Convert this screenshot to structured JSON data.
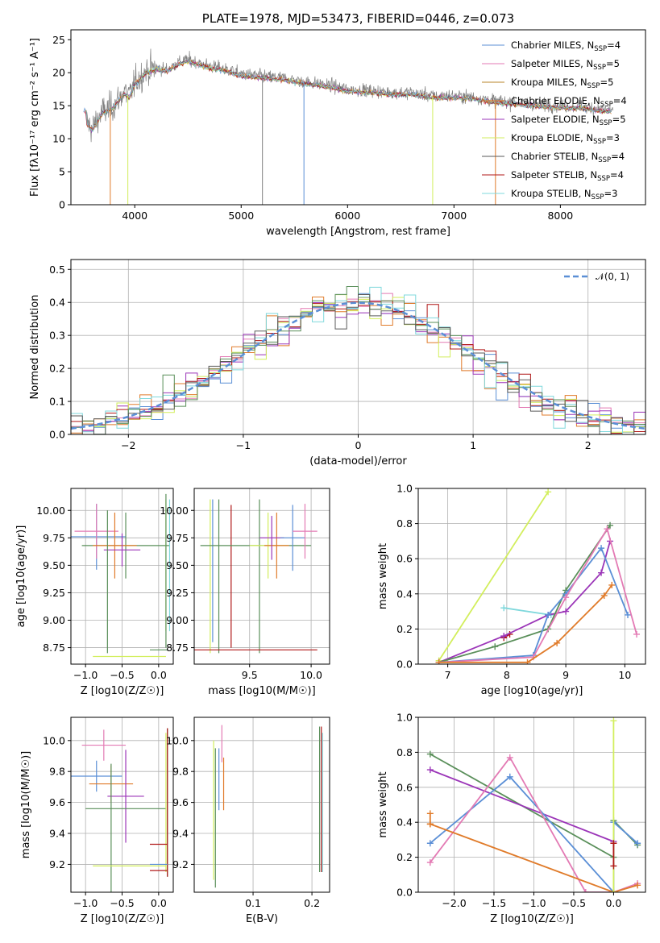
{
  "colors": {
    "Chabrier MILES": "#5b8fd6",
    "Salpeter MILES": "#e37ab4",
    "Kroupa MILES": "#b8852a",
    "Chabrier ELODIE": "#e07b2a",
    "Salpeter ELODIE": "#9b35b8",
    "Kroupa ELODIE": "#d2ee5c",
    "Chabrier STELIB": "#5a5a5a",
    "Salpeter STELIB": "#b01818",
    "Kroupa STELIB": "#7fd8dc",
    "green": "#5a8f5a",
    "norm": "#5b8fd6"
  },
  "chart_data": [
    {
      "id": "spectrum",
      "type": "line",
      "title": "PLATE=1978, MJD=53473, FIBERID=0446, z=0.073",
      "xlabel": "wavelength [Angstrom, rest frame]",
      "ylabel": "Flux [fλ10⁻¹⁷ erg cm⁻² s⁻¹ A⁻¹]",
      "xlim": [
        3400,
        8800
      ],
      "ylim": [
        0,
        26.5
      ],
      "xticks": [
        4000,
        5000,
        6000,
        7000,
        8000
      ],
      "yticks": [
        0,
        5,
        10,
        15,
        20,
        25
      ],
      "legend_position": "top-right",
      "data_envelope": {
        "x": [
          3550,
          3600,
          3650,
          3700,
          3750,
          3800,
          3850,
          3900,
          3950,
          4000,
          4050,
          4100,
          4200,
          4300,
          4400,
          4500,
          4600,
          4700,
          4800,
          4900,
          5000,
          5200,
          5400,
          5600,
          5800,
          6000,
          6200,
          6400,
          6600,
          6800,
          7000,
          7200,
          7400,
          7600,
          7800,
          8000,
          8200,
          8400,
          8500
        ],
        "y": [
          12.5,
          11.5,
          13.0,
          14.2,
          14.5,
          15.0,
          16.0,
          17.2,
          16.5,
          18.5,
          19.3,
          20.2,
          20.8,
          20.5,
          21.5,
          22.0,
          21.5,
          21.0,
          20.8,
          20.3,
          19.8,
          19.5,
          19.2,
          18.6,
          18.2,
          17.5,
          17.3,
          17.0,
          17.0,
          16.5,
          16.5,
          16.3,
          15.7,
          15.5,
          15.2,
          15.0,
          14.9,
          14.5,
          14.4
        ]
      },
      "series": [
        {
          "name": "Chabrier MILES",
          "n_ssp": "4"
        },
        {
          "name": "Salpeter MILES",
          "n_ssp": "5"
        },
        {
          "name": "Kroupa MILES",
          "n_ssp": "5"
        },
        {
          "name": "Chabrier ELODIE",
          "n_ssp": "4"
        },
        {
          "name": "Salpeter ELODIE",
          "n_ssp": "5"
        },
        {
          "name": "Kroupa ELODIE",
          "n_ssp": "3"
        },
        {
          "name": "Chabrier STELIB",
          "n_ssp": "4"
        },
        {
          "name": "Salpeter STELIB",
          "n_ssp": "4"
        },
        {
          "name": "Kroupa STELIB",
          "n_ssp": "3"
        }
      ],
      "dips": [
        {
          "x": 3770,
          "y": 0
        },
        {
          "x": 3935,
          "y": 0
        },
        {
          "x": 5200,
          "y": 0
        },
        {
          "x": 5590,
          "y": 0
        },
        {
          "x": 6800,
          "y": 0
        },
        {
          "x": 7390,
          "y": 0
        }
      ]
    },
    {
      "id": "residuals",
      "type": "histogram",
      "xlabel": "(data-model)/error",
      "ylabel": "Normed distribution",
      "xlim": [
        -2.5,
        2.5
      ],
      "ylim": [
        0,
        0.53
      ],
      "xticks": [
        -2,
        -1,
        0,
        1,
        2
      ],
      "yticks": [
        0.0,
        0.1,
        0.2,
        0.3,
        0.4,
        0.5
      ],
      "legend": "𝒩(0, 1)",
      "legend_position": "top-right",
      "bin_width": 0.1
    },
    {
      "id": "age_Z",
      "type": "scatter",
      "xlabel": "Z [log10(Z/Z☉)]",
      "ylabel": "age  [log10(age/yr)]",
      "xlim": [
        -1.2,
        0.2
      ],
      "ylim": [
        8.6,
        10.2
      ],
      "xticks": [
        -1.0,
        -0.5,
        0.0
      ],
      "xticklabels": [
        "−1.0",
        "−0.5",
        "0.0"
      ],
      "yticks": [
        8.75,
        9.0,
        9.25,
        9.5,
        9.75,
        10.0
      ],
      "points": [
        {
          "c": "Chabrier MILES",
          "x": -0.85,
          "y": 9.76,
          "xe": 0.4,
          "ye": 0.3
        },
        {
          "c": "Salpeter MILES",
          "x": -0.85,
          "y": 9.81,
          "xe": 0.3,
          "ye": 0.25
        },
        {
          "c": "green",
          "x": -0.45,
          "y": 9.68,
          "xe": 0.6,
          "ye": 0.3
        },
        {
          "c": "Chabrier ELODIE",
          "x": -0.6,
          "y": 9.68,
          "xe": 0.3,
          "ye": 0.3
        },
        {
          "c": "Salpeter ELODIE",
          "x": -0.5,
          "y": 9.64,
          "xe": 0.25,
          "ye": 0.15
        },
        {
          "c": "Kroupa ELODIE",
          "x": -0.4,
          "y": 8.67,
          "xe": 0.5,
          "ye": 0.0
        },
        {
          "c": "Kroupa ELODIE",
          "x": 0.1,
          "y": 9.5,
          "xe": 0.0,
          "ye": 0.6
        },
        {
          "c": "Kroupa STELIB",
          "x": 0.15,
          "y": 9.5,
          "xe": 0.0,
          "ye": 0.6
        },
        {
          "c": "green",
          "x": 0.1,
          "y": 9.45,
          "xe": 0.0,
          "ye": 0.7
        },
        {
          "c": "green",
          "x": 0.0,
          "y": 8.73,
          "xe": 0.12,
          "ye": 0.0
        },
        {
          "c": "green",
          "x": -0.7,
          "y": 9.35,
          "xe": 0.0,
          "ye": 0.65
        }
      ]
    },
    {
      "id": "age_mass",
      "type": "scatter",
      "xlabel": "mass [log10(M/M☉)]",
      "ylabel": "",
      "xlim": [
        9.05,
        10.15
      ],
      "ylim": [
        8.6,
        10.2
      ],
      "xticks": [
        9.5,
        10.0
      ],
      "xticklabels": [
        "9.5",
        "10.0"
      ],
      "yticks": [
        8.75,
        9.0,
        9.25,
        9.5,
        9.75,
        10.0
      ],
      "points": [
        {
          "c": "Kroupa ELODIE",
          "x": 9.18,
          "y": 9.4,
          "xe": 0.0,
          "ye": 0.7
        },
        {
          "c": "Chabrier MILES",
          "x": 9.2,
          "y": 9.45,
          "xe": 0.0,
          "ye": 0.65
        },
        {
          "c": "green",
          "x": 9.25,
          "y": 9.4,
          "xe": 0.0,
          "ye": 0.7
        },
        {
          "c": "Salpeter STELIB",
          "x": 9.35,
          "y": 9.4,
          "xe": 0.0,
          "ye": 0.65
        },
        {
          "c": "green",
          "x": 9.55,
          "y": 9.68,
          "xe": 0.45,
          "ye": 0.0
        },
        {
          "c": "green",
          "x": 9.58,
          "y": 9.4,
          "xe": 0.0,
          "ye": 0.7
        },
        {
          "c": "Kroupa ELODIE",
          "x": 9.65,
          "y": 9.68,
          "xe": 0.15,
          "ye": 0.3
        },
        {
          "c": "Chabrier ELODIE",
          "x": 9.72,
          "y": 9.68,
          "xe": 0.1,
          "ye": 0.3
        },
        {
          "c": "Salpeter ELODIE",
          "x": 9.68,
          "y": 9.75,
          "xe": 0.1,
          "ye": 0.2
        },
        {
          "c": "Chabrier MILES",
          "x": 9.85,
          "y": 9.75,
          "xe": 0.1,
          "ye": 0.3
        },
        {
          "c": "Salpeter MILES",
          "x": 9.95,
          "y": 9.81,
          "xe": 0.1,
          "ye": 0.25
        },
        {
          "c": "Salpeter STELIB",
          "x": 9.5,
          "y": 8.73,
          "xe": 0.55,
          "ye": 0.0
        }
      ]
    },
    {
      "id": "weight_age",
      "type": "line",
      "xlabel": "age  [log10(age/yr)]",
      "ylabel": "mass weight",
      "xlim": [
        6.5,
        10.35
      ],
      "ylim": [
        0,
        1.0
      ],
      "xticks": [
        7,
        8,
        9,
        10
      ],
      "yticks": [
        0.0,
        0.2,
        0.4,
        0.6,
        0.8,
        1.0
      ],
      "series": [
        {
          "c": "Kroupa ELODIE",
          "x": [
            6.85,
            8.7
          ],
          "y": [
            0.02,
            0.98
          ]
        },
        {
          "c": "Kroupa STELIB",
          "x": [
            7.95,
            8.75
          ],
          "y": [
            0.32,
            0.28
          ]
        },
        {
          "c": "Salpeter STELIB",
          "x": [
            7.95,
            8.05
          ],
          "y": [
            0.15,
            0.17
          ]
        },
        {
          "c": "Salpeter ELODIE",
          "x": [
            6.85,
            7.95,
            8.7,
            9.0,
            9.6,
            9.75
          ],
          "y": [
            0.01,
            0.16,
            0.28,
            0.3,
            0.52,
            0.7
          ]
        },
        {
          "c": "green",
          "x": [
            6.85,
            7.8,
            8.7,
            9.0,
            9.75
          ],
          "y": [
            0.01,
            0.1,
            0.2,
            0.42,
            0.79
          ]
        },
        {
          "c": "Chabrier MILES",
          "x": [
            6.85,
            8.45,
            8.7,
            9.0,
            9.6,
            10.05
          ],
          "y": [
            0.01,
            0.05,
            0.28,
            0.4,
            0.66,
            0.28
          ]
        },
        {
          "c": "Salpeter MILES",
          "x": [
            6.85,
            8.45,
            9.0,
            9.7,
            10.2
          ],
          "y": [
            0.01,
            0.04,
            0.38,
            0.77,
            0.17
          ]
        },
        {
          "c": "Chabrier ELODIE",
          "x": [
            6.85,
            8.35,
            8.85,
            9.65,
            9.78
          ],
          "y": [
            0.01,
            0.01,
            0.12,
            0.39,
            0.45
          ]
        }
      ]
    },
    {
      "id": "mass_Z",
      "type": "scatter",
      "xlabel": "Z [log10(Z/Z☉)]",
      "ylabel": "mass [log10(M/M☉)]",
      "xlim": [
        -1.2,
        0.2
      ],
      "ylim": [
        9.02,
        10.15
      ],
      "xticks": [
        -1.0,
        -0.5,
        0.0
      ],
      "xticklabels": [
        "−1.0",
        "−0.5",
        "0.0"
      ],
      "yticks": [
        9.2,
        9.4,
        9.6,
        9.8,
        10.0
      ],
      "points": [
        {
          "c": "Salpeter MILES",
          "x": -0.75,
          "y": 9.97,
          "xe": 0.3,
          "ye": 0.1
        },
        {
          "c": "Chabrier MILES",
          "x": -0.85,
          "y": 9.77,
          "xe": 0.35,
          "ye": 0.1
        },
        {
          "c": "Chabrier ELODIE",
          "x": -0.65,
          "y": 9.72,
          "xe": 0.3,
          "ye": 0.12
        },
        {
          "c": "Salpeter ELODIE",
          "x": -0.45,
          "y": 9.64,
          "xe": 0.25,
          "ye": 0.3
        },
        {
          "c": "green",
          "x": -0.45,
          "y": 9.56,
          "xe": 0.55,
          "ye": 0.0
        },
        {
          "c": "green",
          "x": -0.65,
          "y": 9.4,
          "xe": 0.0,
          "ye": 0.45
        },
        {
          "c": "Kroupa ELODIE",
          "x": -0.4,
          "y": 9.19,
          "xe": 0.5,
          "ye": 0.0
        },
        {
          "c": "Kroupa ELODIE",
          "x": 0.1,
          "y": 9.6,
          "xe": 0.0,
          "ye": 0.45
        },
        {
          "c": "green",
          "x": 0.12,
          "y": 9.6,
          "xe": 0.0,
          "ye": 0.48
        },
        {
          "c": "Salpeter STELIB",
          "x": 0.12,
          "y": 9.6,
          "xe": 0.0,
          "ye": 0.48
        },
        {
          "c": "Salpeter STELIB",
          "x": 0.0,
          "y": 9.33,
          "xe": 0.12,
          "ye": 0.0
        },
        {
          "c": "Chabrier MILES",
          "x": 0.0,
          "y": 9.2,
          "xe": 0.12,
          "ye": 0.0
        },
        {
          "c": "Salpeter STELIB",
          "x": 0.0,
          "y": 9.16,
          "xe": 0.12,
          "ye": 0.0
        }
      ]
    },
    {
      "id": "mass_ebv",
      "type": "scatter",
      "xlabel": "E(B-V)",
      "ylabel": "",
      "xlim": [
        0.0,
        0.23
      ],
      "ylim": [
        9.02,
        10.15
      ],
      "xticks": [
        0.1,
        0.2
      ],
      "xticklabels": [
        "0.1",
        "0.2"
      ],
      "yticks": [
        9.2,
        9.4,
        9.6,
        9.8,
        10.0
      ],
      "points": [
        {
          "c": "Kroupa ELODIE",
          "x": 0.033,
          "y": 9.55,
          "xe": 0.0,
          "ye": 0.45
        },
        {
          "c": "green",
          "x": 0.036,
          "y": 9.5,
          "xe": 0.0,
          "ye": 0.45
        },
        {
          "c": "Chabrier MILES",
          "x": 0.042,
          "y": 9.75,
          "xe": 0.0,
          "ye": 0.2
        },
        {
          "c": "Salpeter MILES",
          "x": 0.047,
          "y": 9.98,
          "xe": 0.0,
          "ye": 0.12
        },
        {
          "c": "Chabrier ELODIE",
          "x": 0.05,
          "y": 9.72,
          "xe": 0.0,
          "ye": 0.17
        },
        {
          "c": "green",
          "x": 0.213,
          "y": 9.62,
          "xe": 0.0,
          "ye": 0.47
        },
        {
          "c": "Salpeter STELIB",
          "x": 0.216,
          "y": 9.62,
          "xe": 0.0,
          "ye": 0.47
        },
        {
          "c": "Kroupa STELIB",
          "x": 0.218,
          "y": 9.6,
          "xe": 0.0,
          "ye": 0.45
        }
      ]
    },
    {
      "id": "weight_Z",
      "type": "line",
      "xlabel": "Z [log10(Z/Z☉)]",
      "ylabel": "mass weight",
      "xlim": [
        -2.45,
        0.4
      ],
      "ylim": [
        0,
        1.0
      ],
      "xticks": [
        -2.0,
        -1.5,
        -1.0,
        -0.5,
        0.0
      ],
      "xticklabels": [
        "−2.0",
        "−1.5",
        "−1.0",
        "−0.5",
        "0.0"
      ],
      "yticks": [
        0.0,
        0.2,
        0.4,
        0.6,
        0.8,
        1.0
      ],
      "series": [
        {
          "c": "green",
          "x": [
            -2.3,
            0.0,
            0.0,
            0.3
          ],
          "y": [
            0.79,
            0.2,
            0.41,
            0.27
          ]
        },
        {
          "c": "Salpeter ELODIE",
          "x": [
            -2.3,
            0.0
          ],
          "y": [
            0.7,
            0.29
          ]
        },
        {
          "c": "Chabrier MILES",
          "x": [
            -2.3,
            -1.3,
            0.0,
            0.0,
            0.3
          ],
          "y": [
            0.28,
            0.66,
            0.0,
            0.4,
            0.28
          ]
        },
        {
          "c": "Salpeter MILES",
          "x": [
            -2.3,
            -1.3,
            -0.35,
            0.0,
            0.3
          ],
          "y": [
            0.17,
            0.77,
            0.0,
            0.0,
            0.05
          ]
        },
        {
          "c": "Chabrier ELODIE",
          "x": [
            -2.3,
            0.0,
            0.3
          ],
          "y": [
            0.39,
            0.0,
            0.04
          ]
        },
        {
          "c": "Chabrier ELODIE",
          "x": [
            -2.3,
            -2.3
          ],
          "y": [
            0.39,
            0.45
          ]
        },
        {
          "c": "Kroupa ELODIE",
          "x": [
            0.0,
            0.0
          ],
          "y": [
            0.0,
            0.98
          ]
        },
        {
          "c": "Salpeter STELIB",
          "x": [
            0.0,
            0.0
          ],
          "y": [
            0.15,
            0.28
          ]
        }
      ]
    }
  ]
}
